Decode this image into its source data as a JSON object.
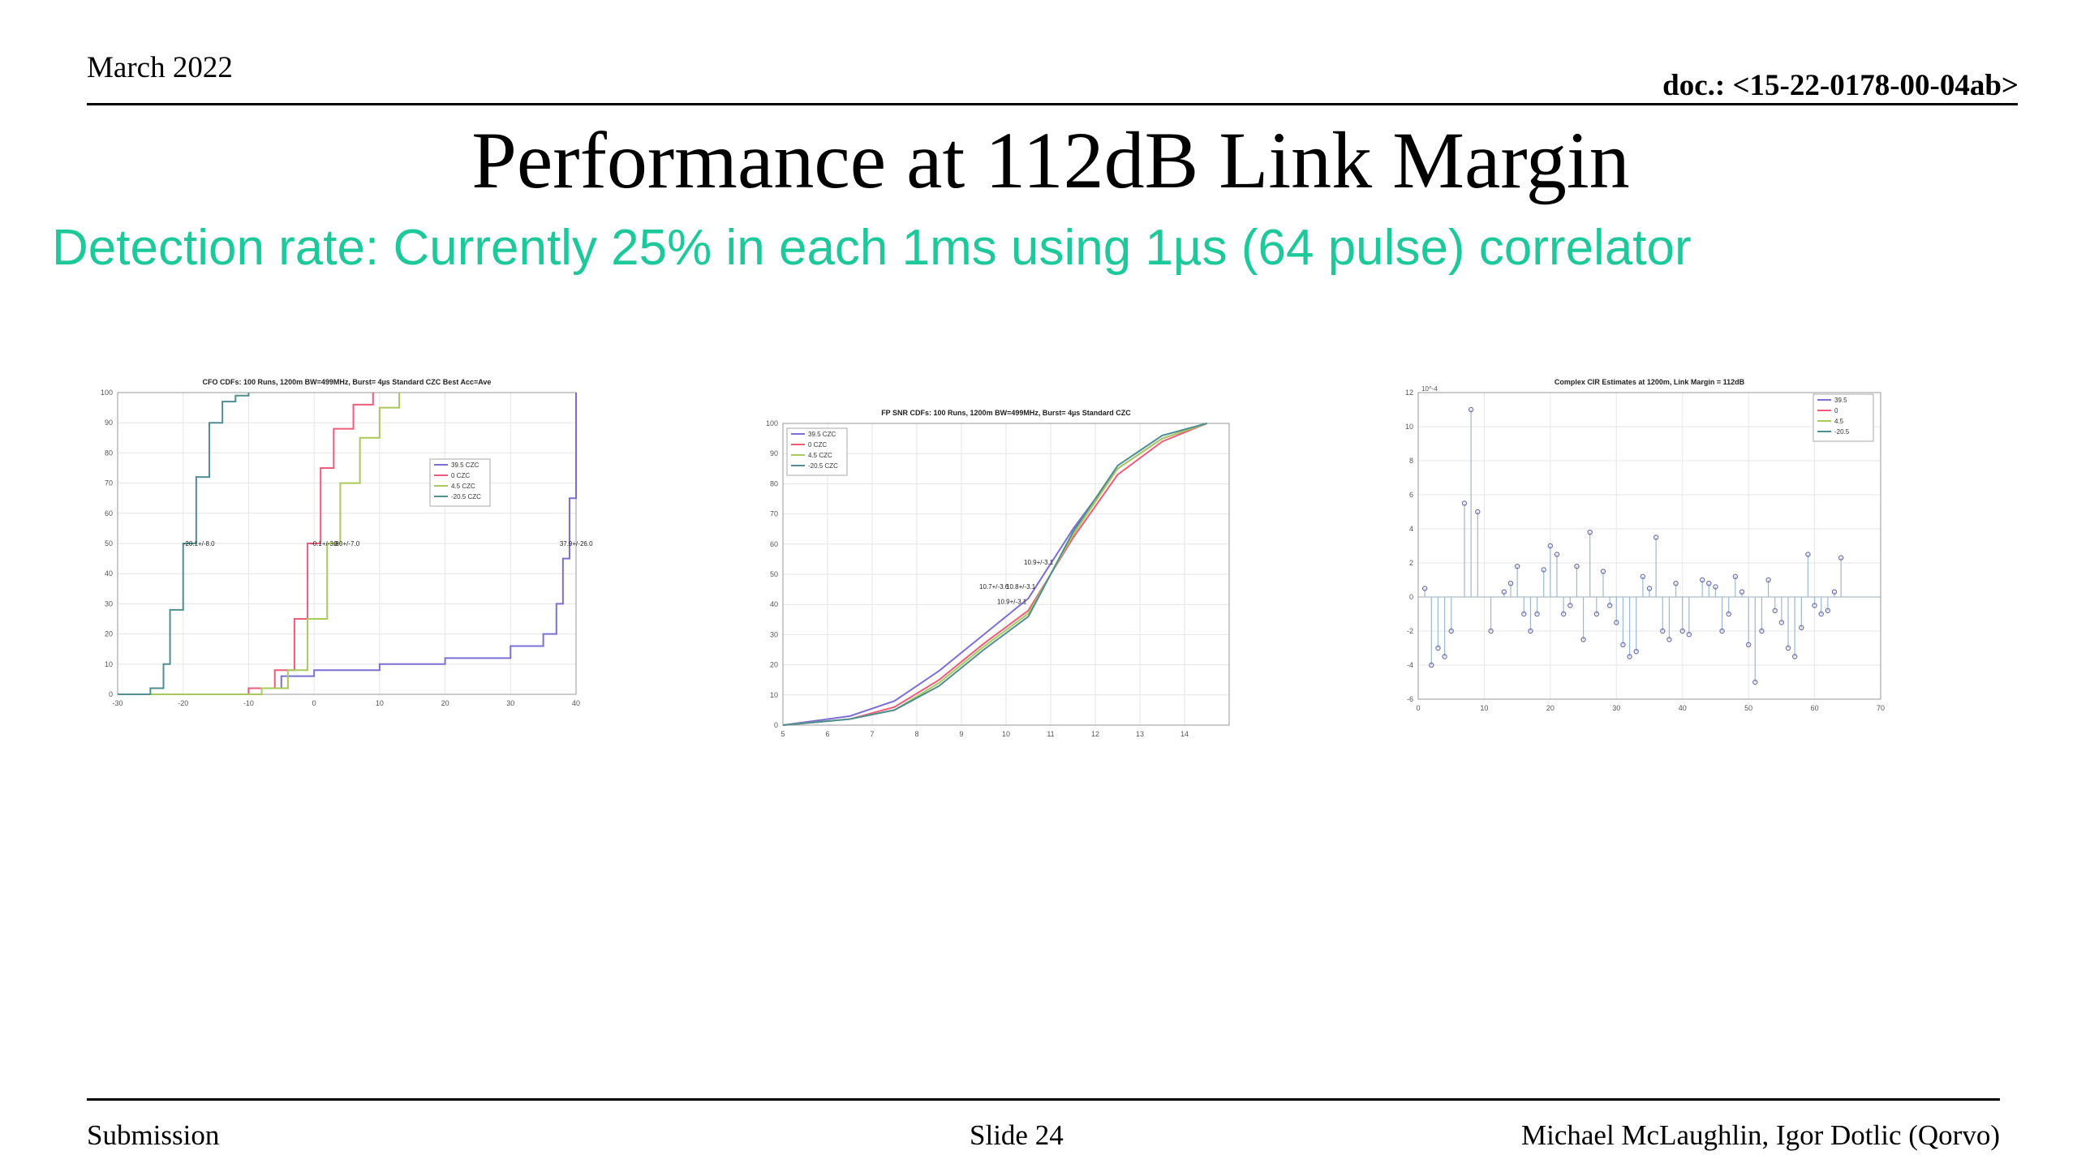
{
  "header": {
    "date": "March 2022",
    "doc": "doc.: <15-22-0178-00-04ab>"
  },
  "slide": {
    "title": "Performance at 112dB Link Margin",
    "subtitle": "Detection rate: Currently 25% in each 1ms using 1µs (64 pulse) correlator"
  },
  "footer": {
    "left": "Submission",
    "center": "Slide 24",
    "right": "Michael McLaughlin, Igor Dotlic (Qorvo)"
  },
  "colors": {
    "subtitle": "#1dc99a",
    "s1": "#7b6fd6",
    "s2": "#ef5b7a",
    "s3": "#a9c95a",
    "s4": "#4f8e93"
  },
  "chart_data": [
    {
      "type": "line",
      "title": "CFO CDFs: 100 Runs, 1200m BW=499MHz, Burst= 4µs Standard CZC Best Acc=Ave",
      "xlim": [
        -30,
        40
      ],
      "ylim": [
        0,
        100
      ],
      "xticks": [
        -30,
        -20,
        -10,
        0,
        10,
        20,
        30,
        40
      ],
      "yticks": [
        0,
        10,
        20,
        30,
        40,
        50,
        60,
        70,
        80,
        90,
        100
      ],
      "legend": [
        "39.5 CZC",
        "0 CZC",
        "4.5 CZC",
        "-20.5 CZC"
      ],
      "legend_position": "right",
      "annotations": [
        "-20.1+/-8.0",
        "-0.1+/-3.8",
        "0.0+/-7.0",
        "37.9+/-26.0"
      ],
      "series": [
        {
          "name": "39.5 CZC",
          "x": [
            -30,
            -10,
            -5,
            0,
            10,
            20,
            30,
            35,
            37,
            38,
            39,
            40,
            40
          ],
          "y": [
            0,
            2,
            6,
            8,
            10,
            12,
            16,
            20,
            30,
            45,
            65,
            80,
            100
          ]
        },
        {
          "name": "0 CZC",
          "x": [
            -30,
            -10,
            -6,
            -3,
            -1,
            1,
            3,
            6,
            9
          ],
          "y": [
            0,
            2,
            8,
            25,
            50,
            75,
            88,
            96,
            100
          ]
        },
        {
          "name": "4.5 CZC",
          "x": [
            -30,
            -8,
            -4,
            -1,
            2,
            4,
            7,
            10,
            13
          ],
          "y": [
            0,
            2,
            8,
            25,
            50,
            70,
            85,
            95,
            100
          ]
        },
        {
          "name": "-20.5 CZC",
          "x": [
            -30,
            -25,
            -23,
            -22,
            -20,
            -18,
            -16,
            -14,
            -12,
            -10
          ],
          "y": [
            0,
            2,
            10,
            28,
            50,
            72,
            90,
            97,
            99,
            100
          ]
        }
      ]
    },
    {
      "type": "line",
      "title": "FP SNR CDFs: 100 Runs, 1200m BW=499MHz, Burst= 4µs Standard CZC",
      "xlim": [
        5,
        15
      ],
      "ylim": [
        0,
        100
      ],
      "xticks": [
        5,
        6,
        7,
        8,
        9,
        10,
        11,
        12,
        13,
        14
      ],
      "yticks": [
        0,
        10,
        20,
        30,
        40,
        50,
        60,
        70,
        80,
        90,
        100
      ],
      "legend": [
        "39.5 CZC",
        "0 CZC",
        "4.5 CZC",
        "-20.5 CZC"
      ],
      "legend_position": "top-left",
      "annotations": [
        "10.7+/-3.6",
        "10.8+/-3.1",
        "10.9+/-3.1",
        "10.9+/-3.1"
      ],
      "series": [
        {
          "name": "39.5 CZC",
          "x": [
            5,
            6.5,
            7.5,
            8.5,
            9.5,
            10.5,
            11.5,
            12.5,
            13.5,
            14.5
          ],
          "y": [
            0,
            3,
            8,
            18,
            30,
            42,
            65,
            85,
            95,
            100
          ]
        },
        {
          "name": "0 CZC",
          "x": [
            5,
            6.5,
            7.5,
            8.5,
            9.5,
            10.5,
            11.5,
            12.5,
            13.5,
            14.5
          ],
          "y": [
            0,
            2,
            6,
            15,
            27,
            38,
            62,
            83,
            94,
            100
          ]
        },
        {
          "name": "4.5 CZC",
          "x": [
            5,
            6.5,
            7.5,
            8.5,
            9.5,
            10.5,
            11.5,
            12.5,
            13.5,
            14.5
          ],
          "y": [
            0,
            2,
            5,
            14,
            26,
            37,
            63,
            85,
            95,
            100
          ]
        },
        {
          "name": "-20.5 CZC",
          "x": [
            5,
            6.5,
            7.5,
            8.5,
            9.5,
            10.5,
            11.5,
            12.5,
            13.5,
            14.5
          ],
          "y": [
            0,
            2,
            5,
            13,
            25,
            36,
            64,
            86,
            96,
            100
          ]
        }
      ]
    },
    {
      "type": "scatter",
      "title": "Complex CIR Estimates at 1200m, Link Margin = 112dB",
      "xlim": [
        0,
        70
      ],
      "ylim": [
        -6,
        12
      ],
      "y_exponent": "10^-4",
      "xticks": [
        0,
        10,
        20,
        30,
        40,
        50,
        60,
        70
      ],
      "yticks": [
        -6,
        -4,
        -2,
        0,
        2,
        4,
        6,
        8,
        10,
        12
      ],
      "legend": [
        "39.5",
        "0",
        "4.5",
        "-20.5"
      ],
      "legend_position": "top-right",
      "stem_x": [
        1,
        2,
        3,
        4,
        5,
        7,
        8,
        9,
        11,
        13,
        14,
        15,
        16,
        17,
        18,
        19,
        20,
        21,
        22,
        23,
        24,
        25,
        26,
        27,
        28,
        29,
        30,
        31,
        32,
        33,
        34,
        35,
        36,
        37,
        38,
        39,
        40,
        41,
        43,
        44,
        45,
        46,
        47,
        48,
        49,
        50,
        51,
        52,
        53,
        54,
        55,
        56,
        57,
        58,
        59,
        60,
        61,
        62,
        63,
        64
      ],
      "stem_y": [
        0.5,
        -4,
        -3,
        -3.5,
        -2,
        5.5,
        11,
        5,
        -2,
        0.3,
        0.8,
        1.8,
        -1,
        -2,
        -1,
        1.6,
        3,
        2.5,
        -1,
        -0.5,
        1.8,
        -2.5,
        3.8,
        -1,
        1.5,
        -0.5,
        -1.5,
        -2.8,
        -3.5,
        -3.2,
        1.2,
        0.5,
        3.5,
        -2,
        -2.5,
        0.8,
        -2,
        -2.2,
        1,
        0.8,
        0.6,
        -2,
        -1,
        1.2,
        0.3,
        -2.8,
        -5,
        -2,
        1,
        -0.8,
        -1.5,
        -3,
        -3.5,
        -1.8,
        2.5,
        -0.5,
        -1,
        -0.8,
        0.3,
        2.3
      ]
    }
  ]
}
